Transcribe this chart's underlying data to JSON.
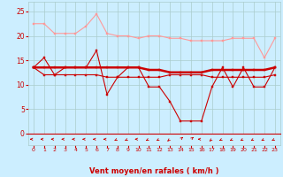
{
  "x": [
    0,
    1,
    2,
    3,
    4,
    5,
    6,
    7,
    8,
    9,
    10,
    11,
    12,
    13,
    14,
    15,
    16,
    17,
    18,
    19,
    20,
    21,
    22,
    23
  ],
  "line1_y": [
    22.5,
    22.5,
    20.5,
    20.5,
    20.5,
    22.0,
    24.5,
    20.5,
    20.0,
    20.0,
    19.5,
    20.0,
    20.0,
    19.5,
    19.5,
    19.0,
    19.0,
    19.0,
    19.0,
    19.5,
    19.5,
    19.5,
    15.5,
    19.5
  ],
  "line2_y": [
    13.5,
    15.5,
    12.0,
    13.5,
    13.5,
    13.5,
    17.0,
    8.0,
    11.5,
    13.5,
    13.5,
    9.5,
    9.5,
    6.5,
    2.5,
    2.5,
    2.5,
    9.5,
    13.5,
    9.5,
    13.5,
    9.5,
    9.5,
    13.5
  ],
  "line3_y": [
    13.5,
    13.5,
    13.5,
    13.5,
    13.5,
    13.5,
    13.5,
    13.5,
    13.5,
    13.5,
    13.5,
    13.0,
    13.0,
    12.5,
    12.5,
    12.5,
    12.5,
    13.0,
    13.0,
    13.0,
    13.0,
    13.0,
    13.0,
    13.5
  ],
  "line4_y": [
    13.5,
    12.0,
    12.0,
    12.0,
    12.0,
    12.0,
    12.0,
    11.5,
    11.5,
    11.5,
    11.5,
    11.5,
    11.5,
    12.0,
    12.0,
    12.0,
    12.0,
    11.5,
    11.5,
    11.5,
    11.5,
    11.5,
    11.5,
    12.0
  ],
  "bg_color": "#cceeff",
  "grid_color": "#aacccc",
  "line1_color": "#ff9999",
  "line2_color": "#cc0000",
  "line3_color": "#cc0000",
  "line4_color": "#cc0000",
  "arrow_color": "#cc0000",
  "xlabel": "Vent moyen/en rafales ( km/h )",
  "xlabel_color": "#cc0000",
  "tick_color": "#cc0000",
  "ylim": [
    0,
    27
  ],
  "yticks": [
    0,
    5,
    10,
    15,
    20,
    25
  ],
  "xticks": [
    0,
    1,
    2,
    3,
    4,
    5,
    6,
    7,
    8,
    9,
    10,
    11,
    12,
    13,
    14,
    15,
    16,
    17,
    18,
    19,
    20,
    21,
    22,
    23
  ],
  "arrow_angles": [
    180,
    180,
    180,
    180,
    180,
    180,
    180,
    180,
    210,
    210,
    180,
    210,
    210,
    225,
    45,
    45,
    180,
    225,
    210,
    210,
    210,
    210,
    210,
    210
  ]
}
